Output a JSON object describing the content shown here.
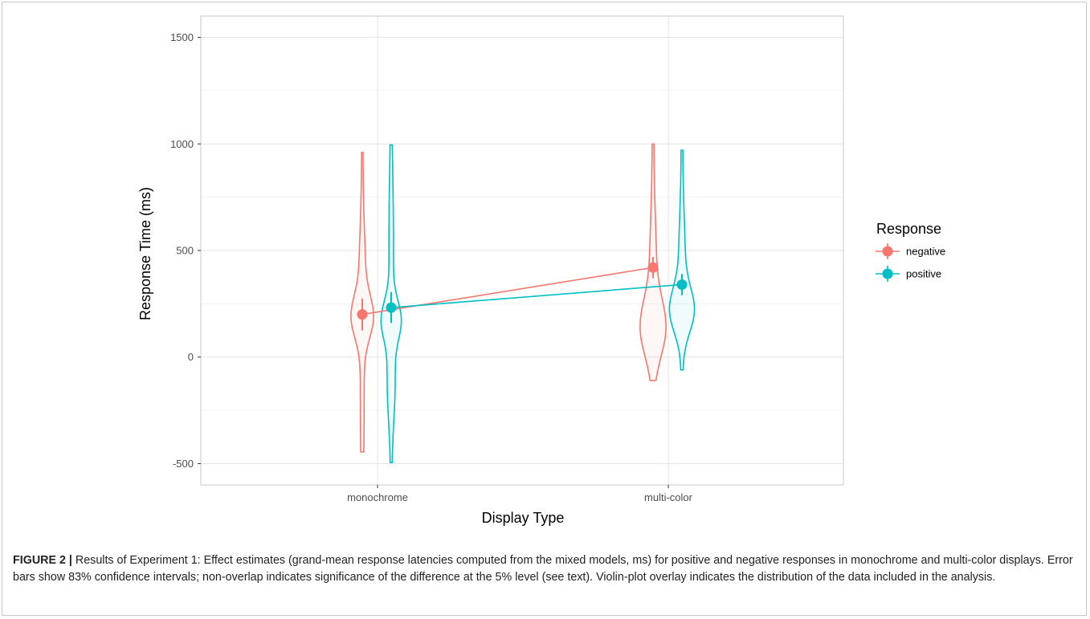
{
  "chart_data": {
    "type": "line",
    "title": "",
    "xlabel": "Display Type",
    "ylabel": "Response Time (ms)",
    "categories": [
      "monochrome",
      "multi-color"
    ],
    "ylim": [
      -600,
      1600
    ],
    "yticks": [
      -500,
      0,
      500,
      1000,
      1500
    ],
    "grid": true,
    "legend": {
      "title": "Response",
      "placement": "right"
    },
    "series": [
      {
        "name": "negative",
        "color": "#F8766D",
        "values": [
          200,
          420
        ],
        "ci_low": [
          125,
          370
        ],
        "ci_high": [
          275,
          470
        ],
        "violin_range": [
          [
            -445,
            960
          ],
          [
            -110,
            1000
          ]
        ]
      },
      {
        "name": "positive",
        "color": "#00BFC4",
        "values": [
          232,
          340
        ],
        "ci_low": [
          160,
          290
        ],
        "ci_high": [
          305,
          390
        ],
        "violin_range": [
          [
            -495,
            995
          ],
          [
            -60,
            970
          ]
        ]
      }
    ]
  },
  "caption": {
    "label": "FIGURE 2 |",
    "text": " Results of Experiment 1: Effect estimates (grand-mean response latencies computed from the mixed models, ms) for positive and negative responses in monochrome and multi-color displays. Error bars show 83% confidence intervals; non-overlap indicates significance of the difference at the 5% level (see text). Violin-plot overlay indicates the distribution of the data included in the analysis."
  }
}
